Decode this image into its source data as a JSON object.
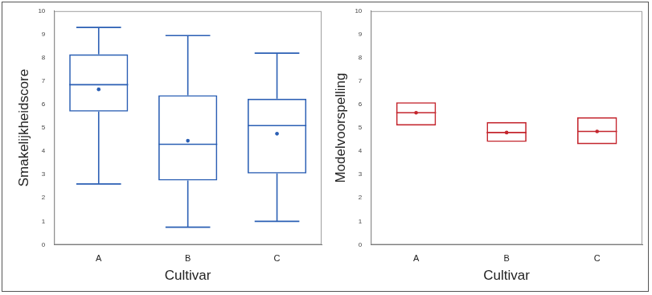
{
  "chart_data": [
    {
      "type": "boxplot",
      "x_label": "Cultivar",
      "y_label": "Smakelijkheidscore",
      "categories": [
        "A",
        "B",
        "C"
      ],
      "min": [
        2.6,
        0.75,
        1.0
      ],
      "q1": [
        5.7,
        2.75,
        3.05
      ],
      "median": [
        6.85,
        4.3,
        5.1
      ],
      "q3": [
        8.15,
        6.4,
        6.25
      ],
      "max": [
        9.3,
        8.95,
        8.2
      ],
      "mean": [
        6.65,
        4.45,
        4.75
      ],
      "color": "#2b5fb4",
      "ylim": [
        0,
        10
      ],
      "yticks": [
        0,
        1,
        2,
        3,
        4,
        5,
        6,
        7,
        8,
        9,
        10
      ],
      "grid": false
    },
    {
      "type": "boxplot",
      "x_label": "Cultivar",
      "y_label": "Modelvoorspelling",
      "categories": [
        "A",
        "B",
        "C"
      ],
      "lower": [
        5.1,
        4.4,
        4.3
      ],
      "median": [
        5.65,
        4.8,
        4.85
      ],
      "upper": [
        6.1,
        5.25,
        5.45
      ],
      "mean": [
        5.65,
        4.8,
        4.85
      ],
      "color": "#c4262e",
      "ylim": [
        0,
        10
      ],
      "yticks": [
        0,
        1,
        2,
        3,
        4,
        5,
        6,
        7,
        8,
        9,
        10
      ],
      "grid": false
    }
  ]
}
